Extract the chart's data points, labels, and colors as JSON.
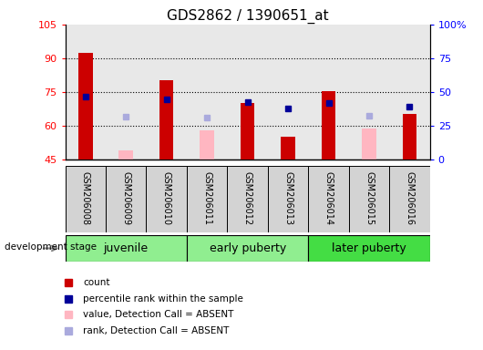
{
  "title": "GDS2862 / 1390651_at",
  "samples": [
    "GSM206008",
    "GSM206009",
    "GSM206010",
    "GSM206011",
    "GSM206012",
    "GSM206013",
    "GSM206014",
    "GSM206015",
    "GSM206016"
  ],
  "group_names": [
    "juvenile",
    "early puberty",
    "later puberty"
  ],
  "group_ranges": [
    [
      0,
      2
    ],
    [
      3,
      5
    ],
    [
      6,
      8
    ]
  ],
  "group_colors": [
    "#90EE90",
    "#90EE90",
    "#44DD44"
  ],
  "ylim_left": [
    45,
    105
  ],
  "ylim_right": [
    0,
    100
  ],
  "yticks_left": [
    45,
    60,
    75,
    90,
    105
  ],
  "yticks_right": [
    0,
    25,
    50,
    75,
    100
  ],
  "ytick_labels_right": [
    "0",
    "25",
    "50",
    "75",
    "100%"
  ],
  "count_values": [
    92.5,
    null,
    80.0,
    null,
    70.0,
    55.0,
    75.5,
    null,
    65.0
  ],
  "count_absent_values": [
    null,
    49.0,
    null,
    58.0,
    null,
    null,
    null,
    58.5,
    null
  ],
  "rank_present_values": [
    73.0,
    null,
    71.5,
    null,
    70.5,
    67.5,
    70.0,
    null,
    68.5
  ],
  "rank_absent_values": [
    null,
    64.0,
    null,
    63.5,
    null,
    null,
    null,
    64.5,
    null
  ],
  "bar_width": 0.35,
  "count_color": "#CC0000",
  "count_absent_color": "#FFB6C1",
  "rank_present_color": "#000099",
  "rank_absent_color": "#AAAADD",
  "plot_bg_color": "#E8E8E8",
  "grid_color": "black",
  "title_fontsize": 11,
  "legend_items": [
    {
      "color": "#CC0000",
      "label": "count"
    },
    {
      "color": "#000099",
      "label": "percentile rank within the sample"
    },
    {
      "color": "#FFB6C1",
      "label": "value, Detection Call = ABSENT"
    },
    {
      "color": "#AAAADD",
      "label": "rank, Detection Call = ABSENT"
    }
  ]
}
